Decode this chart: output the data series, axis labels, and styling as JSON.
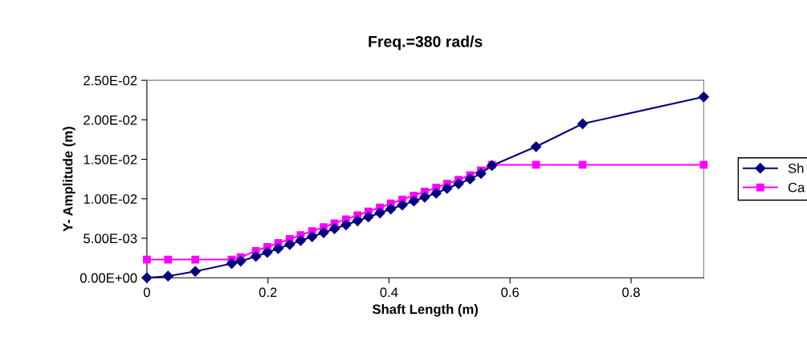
{
  "chart_data": {
    "type": "line",
    "title": "Freq.=380 rad/s",
    "xlabel": "Shaft Length (m)",
    "ylabel": "Y- Amplitude (m)",
    "xlim": [
      0,
      0.92
    ],
    "xticks": [
      0,
      0.2,
      0.4,
      0.6,
      0.8
    ],
    "ylim": [
      0,
      0.025
    ],
    "yticks": [
      {
        "value": 0,
        "label": "0.00E+00"
      },
      {
        "value": 0.005,
        "label": "5.00E-03"
      },
      {
        "value": 0.01,
        "label": "1.00E-02"
      },
      {
        "value": 0.015,
        "label": "1.50E-02"
      },
      {
        "value": 0.02,
        "label": "2.00E-02"
      },
      {
        "value": 0.025,
        "label": "2.50E-02"
      }
    ],
    "grid": false,
    "legend": "right",
    "line_style": "solid",
    "series": [
      {
        "name": "Sh",
        "color": "#000080",
        "marker": "diamond",
        "x": [
          0,
          0.035,
          0.08,
          0.14,
          0.155,
          0.18,
          0.199,
          0.217,
          0.236,
          0.254,
          0.273,
          0.292,
          0.31,
          0.329,
          0.348,
          0.366,
          0.385,
          0.403,
          0.422,
          0.441,
          0.459,
          0.478,
          0.496,
          0.515,
          0.534,
          0.552,
          0.57,
          0.643,
          0.72,
          0.92
        ],
        "values": [
          0,
          0.0002,
          0.0008,
          0.0018,
          0.0021,
          0.0027,
          0.0032,
          0.0037,
          0.0042,
          0.0047,
          0.0052,
          0.0057,
          0.0062,
          0.0067,
          0.0072,
          0.0077,
          0.0082,
          0.0087,
          0.0092,
          0.0097,
          0.0102,
          0.0107,
          0.0113,
          0.0119,
          0.0125,
          0.0132,
          0.0142,
          0.0166,
          0.0195,
          0.0229
        ]
      },
      {
        "name": "Ca",
        "color": "#ff00ff",
        "marker": "square",
        "x": [
          0,
          0.035,
          0.08,
          0.14,
          0.155,
          0.18,
          0.199,
          0.217,
          0.236,
          0.254,
          0.273,
          0.292,
          0.31,
          0.329,
          0.348,
          0.366,
          0.385,
          0.403,
          0.422,
          0.441,
          0.459,
          0.478,
          0.496,
          0.515,
          0.534,
          0.552,
          0.57,
          0.643,
          0.72,
          0.92
        ],
        "values": [
          0.0023,
          0.0023,
          0.0023,
          0.0023,
          0.0026,
          0.0034,
          0.0039,
          0.0044,
          0.0049,
          0.0054,
          0.0059,
          0.0064,
          0.0069,
          0.0074,
          0.0079,
          0.0084,
          0.0089,
          0.0094,
          0.0099,
          0.0104,
          0.0109,
          0.0114,
          0.0119,
          0.0124,
          0.013,
          0.0136,
          0.0143,
          0.0143,
          0.0143,
          0.0143
        ]
      }
    ]
  }
}
